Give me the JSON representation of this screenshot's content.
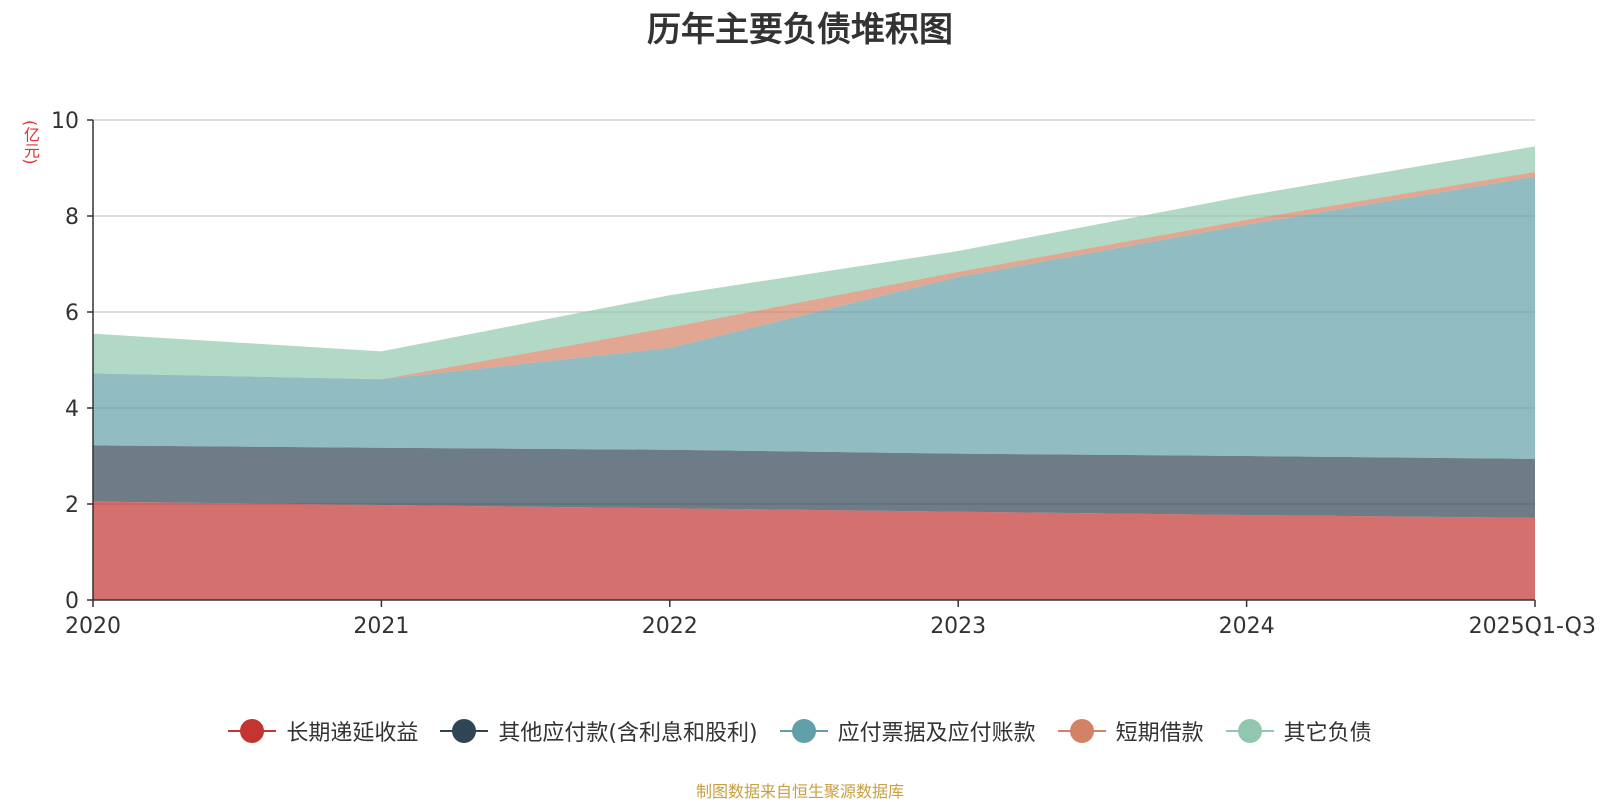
{
  "chart_data": {
    "type": "area",
    "stacked": true,
    "title": "历年主要负债堆积图",
    "ylabel": "(亿元)",
    "xlabel": "",
    "categories": [
      "2020",
      "2021",
      "2022",
      "2023",
      "2024",
      "2025Q1-Q3"
    ],
    "ylim": [
      0,
      10
    ],
    "yticks": [
      0,
      2,
      4,
      6,
      8,
      10
    ],
    "grid": true,
    "legend_position": "bottom",
    "series": [
      {
        "name": "长期递延收益",
        "color": "#c23531",
        "values": [
          2.05,
          1.98,
          1.91,
          1.84,
          1.77,
          1.71
        ]
      },
      {
        "name": "其他应付款(含利息和股利)",
        "color": "#2f4554",
        "values": [
          1.17,
          1.19,
          1.22,
          1.21,
          1.23,
          1.23
        ]
      },
      {
        "name": "应付票据及应付账款",
        "color": "#61a0a8",
        "values": [
          1.5,
          1.43,
          2.12,
          3.68,
          4.82,
          5.88
        ]
      },
      {
        "name": "短期借款",
        "color": "#d48265",
        "values": [
          0.0,
          0.0,
          0.43,
          0.11,
          0.1,
          0.1
        ]
      },
      {
        "name": "其它负债",
        "color": "#91c7ae",
        "values": [
          0.83,
          0.58,
          0.67,
          0.43,
          0.5,
          0.53
        ]
      }
    ]
  },
  "source_note": "制图数据来自恒生聚源数据库"
}
